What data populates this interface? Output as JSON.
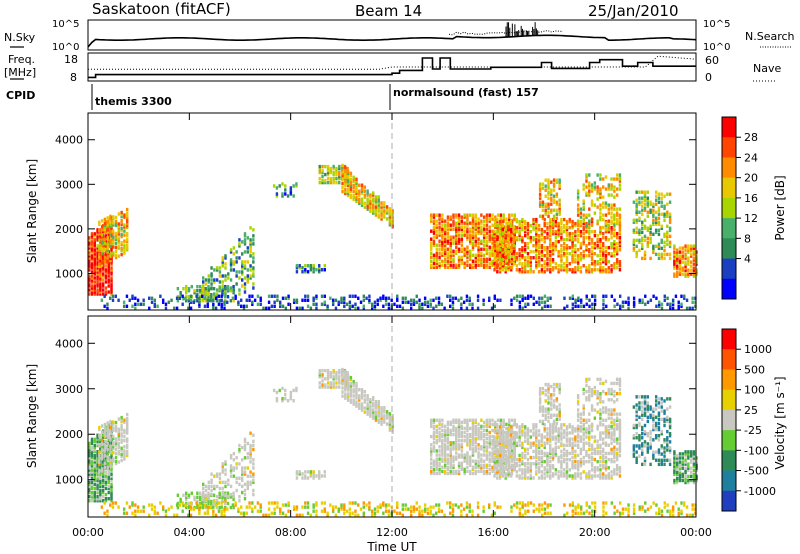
{
  "header": {
    "site": "Saskatoon (fitACF)",
    "beam": "Beam 14",
    "date": "25/Jan/2010"
  },
  "top_panels": {
    "nsky_label": "N.Sky",
    "nsky_ticks": [
      "10^5",
      "10^0"
    ],
    "nsearch_label": "N.Search",
    "nsearch_ticks": [
      "10^5",
      "10^0"
    ],
    "freq_label_1": "Freq.",
    "freq_label_2": "[MHz]",
    "freq_ticks": [
      "18",
      "8"
    ],
    "nave_label": "Nave",
    "nave_ticks": [
      "60",
      "0"
    ],
    "cpid_label": "CPID",
    "cpid_segments": [
      {
        "label": "themis 3300",
        "start_hour": 0
      },
      {
        "label": "normalsound (fast) 157",
        "start_hour": 12
      }
    ]
  },
  "chart_data": [
    {
      "type": "heatmap",
      "name": "power",
      "ylabel": "Slant Range [km]",
      "ylim": [
        180,
        4600
      ],
      "yticks": [
        "1000",
        "2000",
        "3000",
        "4000"
      ],
      "xlim": [
        0,
        24
      ],
      "colorbar_label": "Power [dB]",
      "colorbar_ticks": [
        "4",
        "8",
        "12",
        "16",
        "20",
        "24",
        "28"
      ],
      "colors": [
        "#0000ff",
        "#1a3fc0",
        "#2e8b57",
        "#48b06a",
        "#a8d400",
        "#e8c800",
        "#ff8c00",
        "#ff4500",
        "#ff0000"
      ]
    },
    {
      "type": "heatmap",
      "name": "velocity",
      "ylabel": "Slant Range [km]",
      "ylim": [
        180,
        4600
      ],
      "yticks": [
        "1000",
        "2000",
        "3000",
        "4000"
      ],
      "xlim": [
        0,
        24
      ],
      "xlabel": "Time UT",
      "xticks": [
        "00:00",
        "04:00",
        "08:00",
        "12:00",
        "16:00",
        "20:00",
        "00:00"
      ],
      "colorbar_label": "Velocity [m s⁻¹]",
      "colorbar_ticks": [
        "1000",
        "500",
        "100",
        "25",
        "-25",
        "-100",
        "-500",
        "-1000"
      ],
      "colors": [
        "#1f3fbf",
        "#1f7f9f",
        "#2e8b57",
        "#66cc33",
        "#c8c8c0",
        "#e8d000",
        "#ff9900",
        "#ff5500",
        "#ff0000"
      ]
    }
  ]
}
